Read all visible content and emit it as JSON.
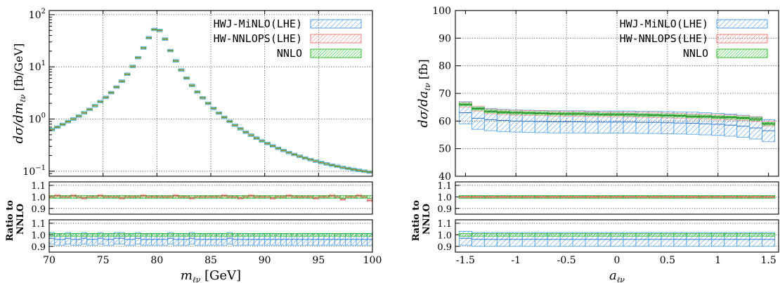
{
  "chart_data": [
    {
      "type": "line",
      "panel": "left",
      "xlabel": "m_ℓν [GeV]",
      "xlabel_main": "m",
      "xlabel_sub": "ℓν",
      "xlabel_unit": "[GeV]",
      "ylabel_main": "dσ/dm",
      "ylabel_sub": "ℓν",
      "ylabel_unit": "[fb/GeV]",
      "yscale": "log",
      "xlim": [
        70,
        100
      ],
      "ylim": [
        0.08,
        120
      ],
      "xticks": [
        "70",
        "75",
        "80",
        "85",
        "90",
        "95",
        "100"
      ],
      "yticks": [
        {
          "value": 0.1,
          "base": "10",
          "exp": "−1"
        },
        {
          "value": 1,
          "base": "10",
          "exp": "0"
        },
        {
          "value": 10,
          "base": "10",
          "exp": "1"
        },
        {
          "value": 100,
          "base": "10",
          "exp": "2"
        }
      ],
      "legend_position": "top-right",
      "series": [
        {
          "name": "HWJ-MiNLO(LHE)",
          "color": "#4d9ee8",
          "pattern": "hatch-blue"
        },
        {
          "name": "HW-NNLOPS(LHE)",
          "color": "#ef7d7d",
          "pattern": "hatch-red"
        },
        {
          "name": "NNLO",
          "color": "#25c225",
          "pattern": "hatch-green"
        }
      ],
      "x": [
        70.25,
        70.75,
        71.25,
        71.75,
        72.25,
        72.75,
        73.25,
        73.75,
        74.25,
        74.75,
        75.25,
        75.75,
        76.25,
        76.75,
        77.25,
        77.75,
        78.25,
        78.75,
        79.25,
        79.75,
        80.25,
        80.75,
        81.25,
        81.75,
        82.25,
        82.75,
        83.25,
        83.75,
        84.25,
        84.75,
        85.25,
        85.75,
        86.25,
        86.75,
        87.25,
        87.75,
        88.25,
        88.75,
        89.25,
        89.75,
        90.25,
        90.75,
        91.25,
        91.75,
        92.25,
        92.75,
        93.25,
        93.75,
        94.25,
        94.75,
        95.25,
        95.75,
        96.25,
        96.75,
        97.25,
        97.75,
        98.25,
        98.75,
        99.25,
        99.75
      ],
      "values": [
        0.63,
        0.7,
        0.79,
        0.89,
        1.0,
        1.14,
        1.32,
        1.53,
        1.8,
        2.15,
        2.6,
        3.2,
        4.1,
        5.3,
        7.2,
        10.2,
        15.0,
        23.0,
        36.0,
        52.0,
        50.0,
        34.0,
        20.5,
        13.0,
        8.7,
        6.1,
        4.4,
        3.3,
        2.55,
        2.0,
        1.6,
        1.3,
        1.08,
        0.9,
        0.76,
        0.65,
        0.56,
        0.49,
        0.43,
        0.38,
        0.34,
        0.305,
        0.275,
        0.25,
        0.228,
        0.209,
        0.193,
        0.179,
        0.167,
        0.156,
        0.147,
        0.138,
        0.131,
        0.124,
        0.118,
        0.113,
        0.108,
        0.104,
        0.1,
        0.096
      ],
      "ratio_panels": {
        "ylabel_line1": "Ratio to",
        "ylabel_line2": "NNLO",
        "yticks": [
          "0.9",
          "1.0",
          "1.1"
        ],
        "ylim": [
          0.85,
          1.13
        ],
        "upper": {
          "series": "HW-NNLOPS(LHE)",
          "central": [
            1.0,
            1.01,
            1.0,
            1.0,
            1.01,
            1.0,
            0.99,
            1.0,
            1.0,
            1.01,
            1.0,
            1.0,
            1.0,
            0.99,
            1.0,
            1.0,
            1.0,
            1.01,
            1.0,
            1.0,
            1.0,
            1.0,
            1.0,
            1.01,
            1.0,
            1.0,
            0.99,
            1.0,
            1.0,
            1.0,
            1.0,
            1.0,
            1.01,
            1.0,
            1.0,
            0.99,
            1.0,
            1.01,
            1.0,
            1.0,
            1.0,
            0.99,
            1.0,
            1.0,
            1.01,
            1.0,
            1.0,
            1.0,
            1.0,
            0.99,
            1.0,
            1.0,
            1.01,
            1.0,
            0.98,
            1.0,
            1.0,
            1.01,
            1.0,
            0.97
          ],
          "half_width": 0.01
        },
        "lower": {
          "series": "HWJ-MiNLO(LHE)",
          "central": [
            0.97,
            0.96,
            0.96,
            0.97,
            0.96,
            0.96,
            0.97,
            0.96,
            0.96,
            0.97,
            0.96,
            0.96,
            0.97,
            0.97,
            0.96,
            0.96,
            0.97,
            0.96,
            0.96,
            0.96,
            0.96,
            0.96,
            0.97,
            0.96,
            0.96,
            0.96,
            0.97,
            0.96,
            0.96,
            0.96,
            0.96,
            0.96,
            0.96,
            0.97,
            0.96,
            0.96,
            0.96,
            0.96,
            0.96,
            0.96,
            0.96,
            0.96,
            0.96,
            0.96,
            0.96,
            0.96,
            0.96,
            0.96,
            0.96,
            0.96,
            0.96,
            0.96,
            0.96,
            0.96,
            0.96,
            0.96,
            0.96,
            0.96,
            0.96,
            0.96
          ],
          "half_width": 0.05
        }
      }
    },
    {
      "type": "line",
      "panel": "right",
      "xlabel": "a_ℓν",
      "xlabel_main": "a",
      "xlabel_sub": "ℓν",
      "xlabel_unit": "",
      "ylabel_main": "dσ/da",
      "ylabel_sub": "ℓν",
      "ylabel_unit": "[fb]",
      "yscale": "linear",
      "xlim": [
        -1.6,
        1.6
      ],
      "ylim": [
        40,
        100
      ],
      "xticks": [
        "-1.5",
        "-1",
        "-0.5",
        "0",
        "0.5",
        "1",
        "1.5"
      ],
      "yticks": [
        "40",
        "50",
        "60",
        "70",
        "80",
        "90",
        "100"
      ],
      "legend_position": "top-right",
      "series": [
        {
          "name": "HWJ-MiNLO(LHE)",
          "color": "#4d9ee8",
          "pattern": "hatch-blue"
        },
        {
          "name": "HW-NNLOPS(LHE)",
          "color": "#ef7d7d",
          "pattern": "hatch-red"
        },
        {
          "name": "NNLO",
          "color": "#25c225",
          "pattern": "hatch-green"
        }
      ],
      "x": [
        -1.5,
        -1.375,
        -1.25,
        -1.125,
        -1.0,
        -0.875,
        -0.75,
        -0.625,
        -0.5,
        -0.375,
        -0.25,
        -0.125,
        0.0,
        0.125,
        0.25,
        0.375,
        0.5,
        0.625,
        0.75,
        0.875,
        1.0,
        1.125,
        1.25,
        1.375,
        1.5
      ],
      "values": [
        66.0,
        64.5,
        63.5,
        63.2,
        63.0,
        62.9,
        62.8,
        62.7,
        62.6,
        62.6,
        62.5,
        62.4,
        62.4,
        62.3,
        62.2,
        62.1,
        62.0,
        61.9,
        61.7,
        61.6,
        61.4,
        61.3,
        61.1,
        60.7,
        59.0
      ],
      "minlo_values": [
        63.0,
        61.0,
        60.5,
        60.2,
        60.0,
        59.9,
        59.8,
        59.7,
        59.7,
        59.7,
        59.6,
        59.6,
        59.6,
        59.6,
        59.5,
        59.5,
        59.4,
        59.3,
        59.2,
        59.0,
        58.8,
        58.5,
        58.1,
        57.5,
        56.5
      ],
      "ratio_panels": {
        "ylabel_line1": "Ratio to",
        "ylabel_line2": "NNLO",
        "yticks": [
          "0.9",
          "1.0",
          "1.1"
        ],
        "ylim": [
          0.85,
          1.13
        ],
        "upper": {
          "series": "HW-NNLOPS(LHE)",
          "central": [
            1.0,
            1.0,
            1.0,
            1.0,
            1.0,
            1.0,
            1.0,
            1.0,
            1.0,
            1.0,
            1.0,
            1.0,
            1.0,
            1.0,
            1.0,
            1.0,
            1.0,
            1.0,
            1.0,
            1.0,
            1.0,
            1.0,
            1.0,
            1.0,
            1.0
          ],
          "half_width": 0.008
        },
        "lower": {
          "series": "HWJ-MiNLO(LHE)",
          "central": [
            0.97,
            0.96,
            0.96,
            0.96,
            0.96,
            0.96,
            0.96,
            0.96,
            0.96,
            0.96,
            0.96,
            0.96,
            0.96,
            0.96,
            0.96,
            0.96,
            0.96,
            0.96,
            0.96,
            0.96,
            0.96,
            0.96,
            0.96,
            0.96,
            0.96
          ],
          "half_width": 0.06
        }
      }
    }
  ]
}
